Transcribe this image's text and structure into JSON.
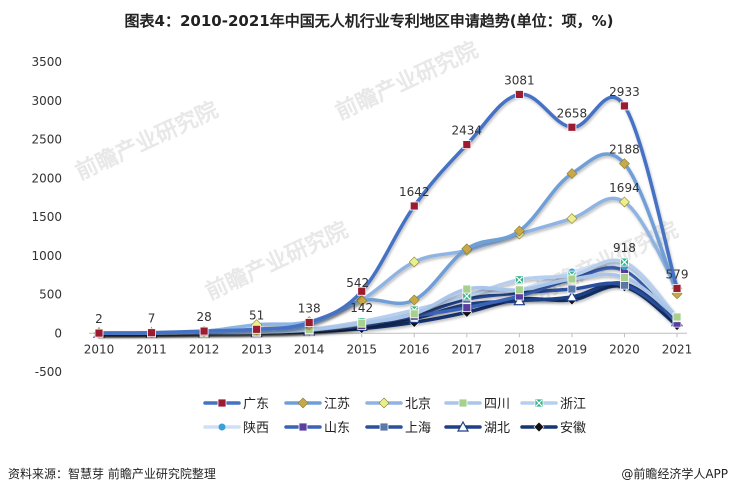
{
  "page": {
    "title": "图表4：2010-2021年中国无人机行业专利地区申请趋势(单位：项，%)",
    "source": "资料来源：智慧芽 前瞻产业研究院整理",
    "brand": "@前瞻经济学人APP",
    "watermark": "前瞻产业研究院"
  },
  "chart_data": {
    "type": "line",
    "title": "图表4：2010-2021年中国无人机行业专利地区申请趋势(单位：项，%)",
    "xlabel": "",
    "ylabel": "",
    "x": [
      "2010",
      "2011",
      "2012",
      "2013",
      "2014",
      "2015",
      "2016",
      "2017",
      "2018",
      "2019",
      "2020",
      "2021"
    ],
    "ylim": [
      -500,
      3500
    ],
    "yticks": [
      -500,
      0,
      500,
      1000,
      1500,
      2000,
      2500,
      3000,
      3500
    ],
    "grid": false,
    "legend": "bottom",
    "series": [
      {
        "name": "广东",
        "color": "#4472c4",
        "marker": "square",
        "markerColor": "#9b1b30",
        "values": [
          2,
          7,
          28,
          51,
          138,
          542,
          1642,
          2434,
          3081,
          2658,
          2933,
          579
        ]
      },
      {
        "name": "江苏",
        "color": "#6f9fd8",
        "marker": "diamond",
        "markerColor": "#c9a84a",
        "values": [
          2,
          6,
          22,
          40,
          110,
          420,
          430,
          1090,
          1320,
          2060,
          2188,
          510
        ]
      },
      {
        "name": "北京",
        "color": "#8fb4e3",
        "marker": "diamond",
        "markerColor": "#e9ef8c",
        "values": [
          1,
          5,
          25,
          110,
          150,
          430,
          920,
          1070,
          1280,
          1480,
          1694,
          580
        ]
      },
      {
        "name": "四川",
        "color": "#a9c5ea",
        "marker": "square",
        "markerColor": "#a8d08d",
        "values": [
          0,
          2,
          8,
          15,
          45,
          130,
          250,
          570,
          560,
          700,
          720,
          210
        ]
      },
      {
        "name": "浙江",
        "color": "#b7cfee",
        "marker": "square-x",
        "markerColor": "#33b38a",
        "values": [
          0,
          3,
          10,
          20,
          50,
          150,
          300,
          480,
          690,
          750,
          918,
          200
        ]
      },
      {
        "name": "陕西",
        "color": "#cfe0f5",
        "marker": "dot",
        "markerColor": "#3aa0d8",
        "values": [
          0,
          2,
          6,
          14,
          40,
          120,
          260,
          500,
          560,
          790,
          860,
          190
        ]
      },
      {
        "name": "山东",
        "color": "#3a63b8",
        "marker": "square",
        "markerColor": "#5b3fa0",
        "values": [
          0,
          1,
          5,
          12,
          30,
          100,
          220,
          330,
          480,
          700,
          810,
          130
        ]
      },
      {
        "name": "上海",
        "color": "#2c4f9e",
        "marker": "square",
        "markerColor": "#5a78a8",
        "values": [
          0,
          2,
          6,
          13,
          35,
          110,
          230,
          440,
          520,
          570,
          620,
          160
        ]
      },
      {
        "name": "湖北",
        "color": "#1f3f86",
        "marker": "triangle",
        "markerColor": "#ffffff",
        "values": [
          0,
          1,
          4,
          10,
          28,
          90,
          190,
          370,
          420,
          470,
          640,
          150
        ]
      },
      {
        "name": "安徽",
        "color": "#173573",
        "marker": "diamond",
        "markerColor": "#111111",
        "values": [
          0,
          1,
          3,
          8,
          20,
          60,
          140,
          270,
          440,
          430,
          600,
          100
        ]
      }
    ],
    "data_labels": {
      "series": "广东",
      "labels": [
        "2",
        "7",
        "28",
        "51",
        "138",
        "542",
        "1642",
        "2434",
        "3081",
        "2658",
        "2933",
        "579"
      ]
    },
    "annotations": [
      {
        "text": "142",
        "x": "2015",
        "y": 142
      },
      {
        "text": "2188",
        "x": "2020",
        "y": 2188
      },
      {
        "text": "1694",
        "x": "2020",
        "y": 1694
      },
      {
        "text": "918",
        "x": "2020",
        "y": 918
      }
    ]
  }
}
